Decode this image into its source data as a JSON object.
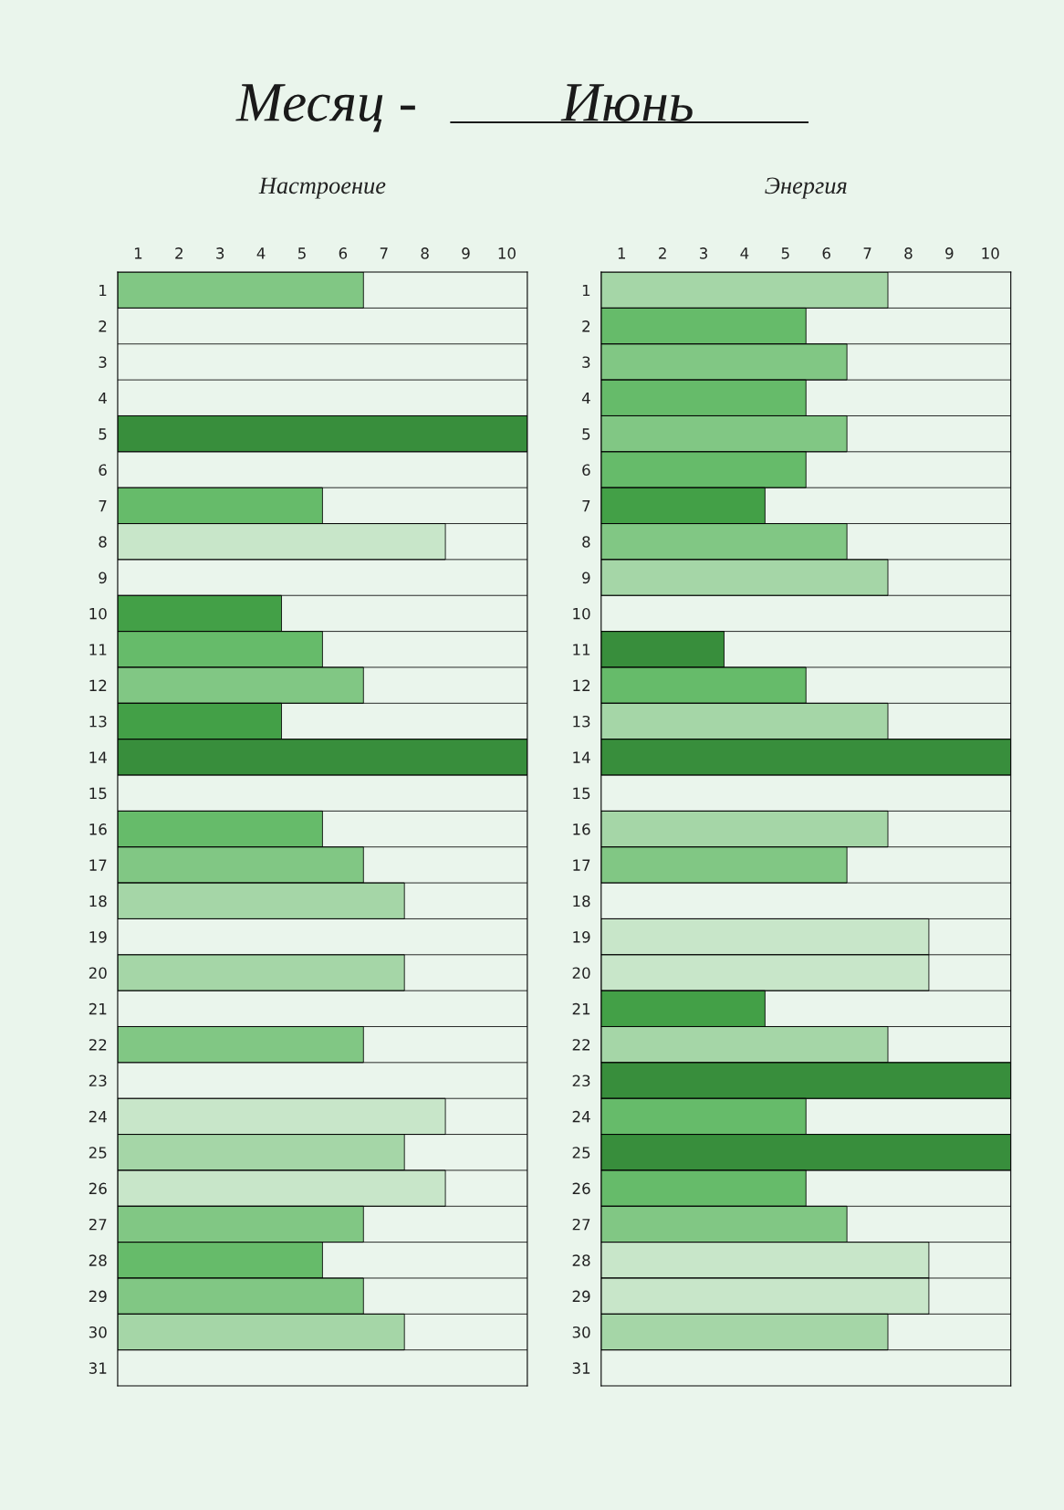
{
  "chart_data": [
    {
      "type": "bar",
      "orientation": "horizontal",
      "title": "Настроение",
      "annotations": [
        "Месяц -",
        "Июнь"
      ],
      "categories": [
        "1",
        "2",
        "3",
        "4",
        "5",
        "6",
        "7",
        "8",
        "9",
        "10",
        "11",
        "12",
        "13",
        "14",
        "15",
        "16",
        "17",
        "18",
        "19",
        "20",
        "21",
        "22",
        "23",
        "24",
        "25",
        "26",
        "27",
        "28",
        "29",
        "30",
        "31"
      ],
      "values": [
        6,
        null,
        null,
        null,
        10,
        null,
        5,
        8,
        null,
        4,
        5,
        6,
        4,
        10,
        null,
        5,
        6,
        7,
        null,
        7,
        null,
        6,
        null,
        8,
        7,
        8,
        6,
        5,
        6,
        7,
        null
      ],
      "colors": [
        "#81c784",
        null,
        null,
        null,
        "#388e3c",
        null,
        "#66bb6a",
        "#c8e6c9",
        null,
        "#43a047",
        "#66bb6a",
        "#81c784",
        "#43a047",
        "#388e3c",
        null,
        "#66bb6a",
        "#81c784",
        "#a5d6a7",
        null,
        "#a5d6a7",
        null,
        "#81c784",
        null,
        "#c8e6c9",
        "#a5d6a7",
        "#c8e6c9",
        "#81c784",
        "#66bb6a",
        "#81c784",
        "#a5d6a7",
        null
      ],
      "xlim": [
        0,
        10
      ],
      "xticks": [
        {
          "value": 0.5,
          "label": "1"
        },
        {
          "value": 1.5,
          "label": "2"
        },
        {
          "value": 2.5,
          "label": "3"
        },
        {
          "value": 3.5,
          "label": "4"
        },
        {
          "value": 4.5,
          "label": "5"
        },
        {
          "value": 5.5,
          "label": "6"
        },
        {
          "value": 6.5,
          "label": "7"
        },
        {
          "value": 7.5,
          "label": "8"
        },
        {
          "value": 8.5,
          "label": "9"
        },
        {
          "value": 9.5,
          "label": "10"
        }
      ],
      "grid": "y"
    },
    {
      "type": "bar",
      "orientation": "horizontal",
      "title": "Энергия",
      "categories": [
        "1",
        "2",
        "3",
        "4",
        "5",
        "6",
        "7",
        "8",
        "9",
        "10",
        "11",
        "12",
        "13",
        "14",
        "15",
        "16",
        "17",
        "18",
        "19",
        "20",
        "21",
        "22",
        "23",
        "24",
        "25",
        "26",
        "27",
        "28",
        "29",
        "30",
        "31"
      ],
      "values": [
        7,
        5,
        6,
        5,
        6,
        5,
        4,
        6,
        7,
        null,
        3,
        5,
        7,
        10,
        null,
        7,
        6,
        null,
        8,
        8,
        4,
        7,
        10,
        5,
        10,
        5,
        6,
        8,
        8,
        7,
        null
      ],
      "colors": [
        "#a5d6a7",
        "#66bb6a",
        "#81c784",
        "#66bb6a",
        "#81c784",
        "#66bb6a",
        "#43a047",
        "#81c784",
        "#a5d6a7",
        null,
        "#388e3c",
        "#66bb6a",
        "#a5d6a7",
        "#388e3c",
        null,
        "#a5d6a7",
        "#81c784",
        null,
        "#c8e6c9",
        "#c8e6c9",
        "#43a047",
        "#a5d6a7",
        "#388e3c",
        "#66bb6a",
        "#388e3c",
        "#66bb6a",
        "#81c784",
        "#c8e6c9",
        "#c8e6c9",
        "#a5d6a7",
        null
      ],
      "xlim": [
        0,
        10
      ],
      "xticks": [
        {
          "value": 0.5,
          "label": "1"
        },
        {
          "value": 1.5,
          "label": "2"
        },
        {
          "value": 2.5,
          "label": "3"
        },
        {
          "value": 3.5,
          "label": "4"
        },
        {
          "value": 4.5,
          "label": "5"
        },
        {
          "value": 5.5,
          "label": "6"
        },
        {
          "value": 6.5,
          "label": "7"
        },
        {
          "value": 7.5,
          "label": "8"
        },
        {
          "value": 8.5,
          "label": "9"
        },
        {
          "value": 9.5,
          "label": "10"
        }
      ],
      "grid": "y"
    }
  ]
}
